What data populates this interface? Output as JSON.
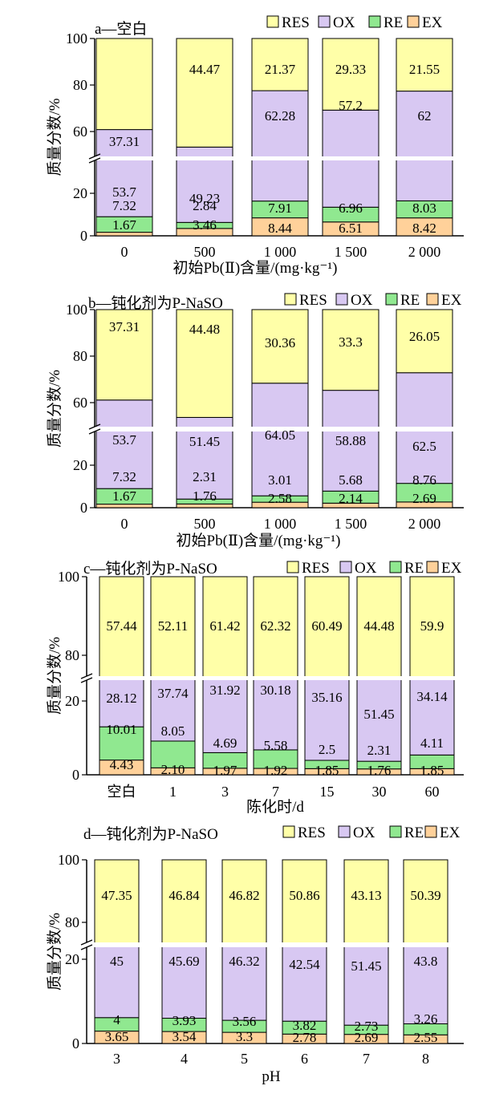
{
  "colors": {
    "RES": "#ffffa8",
    "OX": "#d8c8f2",
    "RE": "#90e890",
    "EX": "#ffd19a"
  },
  "ylabel": "质量分数/%",
  "chart_data": [
    {
      "type": "bar",
      "stacked": true,
      "broken_axis": true,
      "title": "a—空白",
      "xlabel": "初始Pb(Ⅱ)含量/(mg·kg⁻¹)",
      "categories": [
        "0",
        "500",
        "1 000",
        "1 500",
        "2 000"
      ],
      "legend": [
        "RES",
        "OX",
        "RE",
        "EX"
      ],
      "yticks": [
        "0",
        "20",
        "60",
        "80",
        "100"
      ],
      "series": [
        {
          "name": "EX",
          "values": [
            1.67,
            3.46,
            8.44,
            6.51,
            8.42
          ],
          "labels": [
            "1.67",
            "3.46",
            "8.44",
            "6.51",
            "8.42"
          ]
        },
        {
          "name": "RE",
          "values": [
            7.32,
            2.84,
            7.91,
            6.96,
            8.03
          ],
          "labels": [
            "7.32",
            "2.84",
            "7.91",
            "6.96",
            "8.03"
          ]
        },
        {
          "name": "OX",
          "values": [
            53.7,
            49.23,
            62.28,
            57.2,
            62
          ],
          "labels": [
            "53.7",
            "49.23",
            "62.28",
            "57.2",
            "62"
          ]
        },
        {
          "name": "RES",
          "values": [
            37.31,
            44.47,
            21.37,
            29.33,
            21.55
          ],
          "labels": [
            "37.31",
            "44.47",
            "21.37",
            "29.33",
            "21.55"
          ]
        }
      ]
    },
    {
      "type": "bar",
      "stacked": true,
      "broken_axis": true,
      "title": "b—钝化剂为P-NaSO",
      "xlabel": "初始Pb(Ⅱ)含量/(mg·kg⁻¹)",
      "categories": [
        "0",
        "500",
        "1 000",
        "1 500",
        "2 000"
      ],
      "legend": [
        "RES",
        "OX",
        "RE",
        "EX"
      ],
      "yticks": [
        "0",
        "20",
        "60",
        "80",
        "100"
      ],
      "series": [
        {
          "name": "EX",
          "values": [
            1.67,
            1.76,
            2.58,
            2.14,
            2.69
          ],
          "labels": [
            "1.67",
            "1.76",
            "2.58",
            "2.14",
            "2.69"
          ]
        },
        {
          "name": "RE",
          "values": [
            7.32,
            2.31,
            3.01,
            5.68,
            8.76
          ],
          "labels": [
            "7.32",
            "2.31",
            "3.01",
            "5.68",
            "8.76"
          ]
        },
        {
          "name": "OX",
          "values": [
            53.7,
            51.45,
            64.05,
            58.88,
            62.5
          ],
          "labels": [
            "53.7",
            "51.45",
            "64.05",
            "58.88",
            "62.5"
          ]
        },
        {
          "name": "RES",
          "values": [
            37.31,
            44.48,
            30.36,
            33.3,
            26.05
          ],
          "labels": [
            "37.31",
            "44.48",
            "30.36",
            "33.3",
            "26.05"
          ]
        }
      ]
    },
    {
      "type": "bar",
      "stacked": true,
      "broken_axis": true,
      "title": "c—钝化剂为P-NaSO",
      "xlabel": "陈化时/d",
      "categories": [
        "空白",
        "1",
        "3",
        "7",
        "15",
        "30",
        "60"
      ],
      "legend": [
        "RES",
        "OX",
        "RE",
        "EX"
      ],
      "yticks": [
        "0",
        "20",
        "80",
        "100"
      ],
      "series": [
        {
          "name": "EX",
          "values": [
            4.43,
            2.1,
            1.97,
            1.92,
            1.85,
            1.76,
            1.85
          ],
          "labels": [
            "4.43",
            "2.10",
            "1.97",
            "1.92",
            "1.85",
            "1.76",
            "1.85"
          ]
        },
        {
          "name": "RE",
          "values": [
            10.01,
            8.05,
            4.69,
            5.58,
            2.5,
            2.31,
            4.11
          ],
          "labels": [
            "10.01",
            "8.05",
            "4.69",
            "5.58",
            "2.5",
            "2.31",
            "4.11"
          ]
        },
        {
          "name": "OX",
          "values": [
            28.12,
            37.74,
            31.92,
            30.18,
            35.16,
            51.45,
            34.14
          ],
          "labels": [
            "28.12",
            "37.74",
            "31.92",
            "30.18",
            "35.16",
            "51.45",
            "34.14"
          ]
        },
        {
          "name": "RES",
          "values": [
            57.44,
            52.11,
            61.42,
            62.32,
            60.49,
            44.48,
            59.9
          ],
          "labels": [
            "57.44",
            "52.11",
            "61.42",
            "62.32",
            "60.49",
            "44.48",
            "59.9"
          ]
        }
      ]
    },
    {
      "type": "bar",
      "stacked": true,
      "broken_axis": true,
      "title": "d—钝化剂为P-NaSO",
      "xlabel": "pH",
      "categories": [
        "3",
        "4",
        "5",
        "6",
        "7",
        "8"
      ],
      "legend": [
        "RES",
        "OX",
        "RE",
        "EX"
      ],
      "yticks": [
        "0",
        "20",
        "80",
        "100"
      ],
      "series": [
        {
          "name": "EX",
          "values": [
            3.65,
            3.54,
            3.3,
            2.78,
            2.69,
            2.55
          ],
          "labels": [
            "3.65",
            "3.54",
            "3.3",
            "2.78",
            "2.69",
            "2.55"
          ]
        },
        {
          "name": "RE",
          "values": [
            4,
            3.93,
            3.56,
            3.82,
            2.73,
            3.26
          ],
          "labels": [
            "4",
            "3.93",
            "3.56",
            "3.82",
            "2.73",
            "3.26"
          ]
        },
        {
          "name": "OX",
          "values": [
            45,
            45.69,
            46.32,
            42.54,
            51.45,
            43.8
          ],
          "labels": [
            "45",
            "45.69",
            "46.32",
            "42.54",
            "51.45",
            "43.8"
          ]
        },
        {
          "name": "RES",
          "values": [
            47.35,
            46.84,
            46.82,
            50.86,
            43.13,
            50.39
          ],
          "labels": [
            "47.35",
            "46.84",
            "46.82",
            "50.86",
            "43.13",
            "50.39"
          ]
        }
      ]
    }
  ]
}
